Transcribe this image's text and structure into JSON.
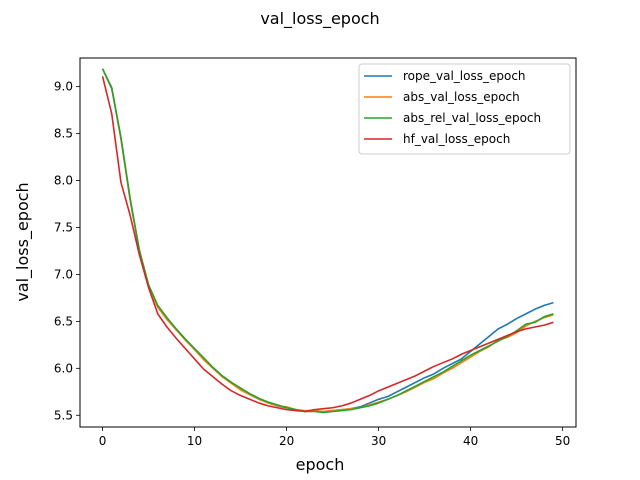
{
  "chart_data": {
    "type": "line",
    "title": "val_loss_epoch",
    "xlabel": "epoch",
    "ylabel": "val_loss_epoch",
    "xlim": [
      -2.45,
      51.45
    ],
    "ylim": [
      5.375,
      9.305
    ],
    "xticks": [
      0,
      10,
      20,
      30,
      40,
      50
    ],
    "xtick_labels": [
      "0",
      "10",
      "20",
      "30",
      "40",
      "50"
    ],
    "yticks": [
      5.5,
      6.0,
      6.5,
      7.0,
      7.5,
      8.0,
      8.5,
      9.0
    ],
    "ytick_labels": [
      "5.5",
      "6.0",
      "6.5",
      "7.0",
      "7.5",
      "8.0",
      "8.5",
      "9.0"
    ],
    "grid": false,
    "legend_position": "top-right",
    "x": [
      0,
      1,
      2,
      3,
      4,
      5,
      6,
      7,
      8,
      9,
      10,
      11,
      12,
      13,
      14,
      15,
      16,
      17,
      18,
      19,
      20,
      21,
      22,
      23,
      24,
      25,
      26,
      27,
      28,
      29,
      30,
      31,
      32,
      33,
      34,
      35,
      36,
      37,
      38,
      39,
      40,
      41,
      42,
      43,
      44,
      45,
      46,
      47,
      48,
      49
    ],
    "series": [
      {
        "name": "rope_val_loss_epoch",
        "color": "#1f77b4",
        "values": [
          9.19,
          8.99,
          8.45,
          7.8,
          7.25,
          6.88,
          6.66,
          6.52,
          6.42,
          6.31,
          6.2,
          6.1,
          6.0,
          5.92,
          5.85,
          5.78,
          5.72,
          5.67,
          5.64,
          5.6,
          5.58,
          5.56,
          5.54,
          5.55,
          5.54,
          5.55,
          5.56,
          5.57,
          5.59,
          5.63,
          5.67,
          5.7,
          5.75,
          5.8,
          5.85,
          5.9,
          5.94,
          6.0,
          6.05,
          6.1,
          6.18,
          6.26,
          6.34,
          6.42,
          6.47,
          6.53,
          6.58,
          6.63,
          6.67,
          6.7
        ]
      },
      {
        "name": "abs_val_loss_epoch",
        "color": "#ff7f0e",
        "values": [
          9.19,
          8.98,
          8.44,
          7.79,
          7.25,
          6.87,
          6.65,
          6.52,
          6.41,
          6.3,
          6.2,
          6.09,
          6.0,
          5.91,
          5.84,
          5.77,
          5.72,
          5.67,
          5.63,
          5.6,
          5.59,
          5.56,
          5.55,
          5.55,
          5.54,
          5.55,
          5.56,
          5.57,
          5.58,
          5.61,
          5.64,
          5.67,
          5.71,
          5.75,
          5.8,
          5.85,
          5.89,
          5.95,
          6.0,
          6.06,
          6.12,
          6.18,
          6.23,
          6.3,
          6.33,
          6.38,
          6.45,
          6.5,
          6.54,
          6.57
        ]
      },
      {
        "name": "abs_rel_val_loss_epoch",
        "color": "#2ca02c",
        "values": [
          9.19,
          8.98,
          8.46,
          7.81,
          7.26,
          6.89,
          6.67,
          6.54,
          6.42,
          6.31,
          6.21,
          6.11,
          6.01,
          5.92,
          5.85,
          5.79,
          5.73,
          5.68,
          5.64,
          5.61,
          5.58,
          5.56,
          5.54,
          5.54,
          5.53,
          5.54,
          5.55,
          5.56,
          5.58,
          5.6,
          5.63,
          5.67,
          5.71,
          5.76,
          5.81,
          5.86,
          5.91,
          5.96,
          6.02,
          6.08,
          6.14,
          6.19,
          6.24,
          6.29,
          6.34,
          6.4,
          6.47,
          6.49,
          6.55,
          6.58
        ]
      },
      {
        "name": "hf_val_loss_epoch",
        "color": "#d62728",
        "values": [
          9.11,
          8.71,
          7.98,
          7.63,
          7.21,
          6.86,
          6.58,
          6.44,
          6.32,
          6.21,
          6.1,
          5.99,
          5.91,
          5.83,
          5.76,
          5.71,
          5.67,
          5.63,
          5.6,
          5.58,
          5.56,
          5.55,
          5.54,
          5.56,
          5.57,
          5.58,
          5.6,
          5.63,
          5.67,
          5.71,
          5.76,
          5.8,
          5.84,
          5.88,
          5.92,
          5.97,
          6.02,
          6.06,
          6.1,
          6.15,
          6.19,
          6.23,
          6.27,
          6.31,
          6.35,
          6.39,
          6.42,
          6.44,
          6.46,
          6.49
        ]
      }
    ]
  }
}
